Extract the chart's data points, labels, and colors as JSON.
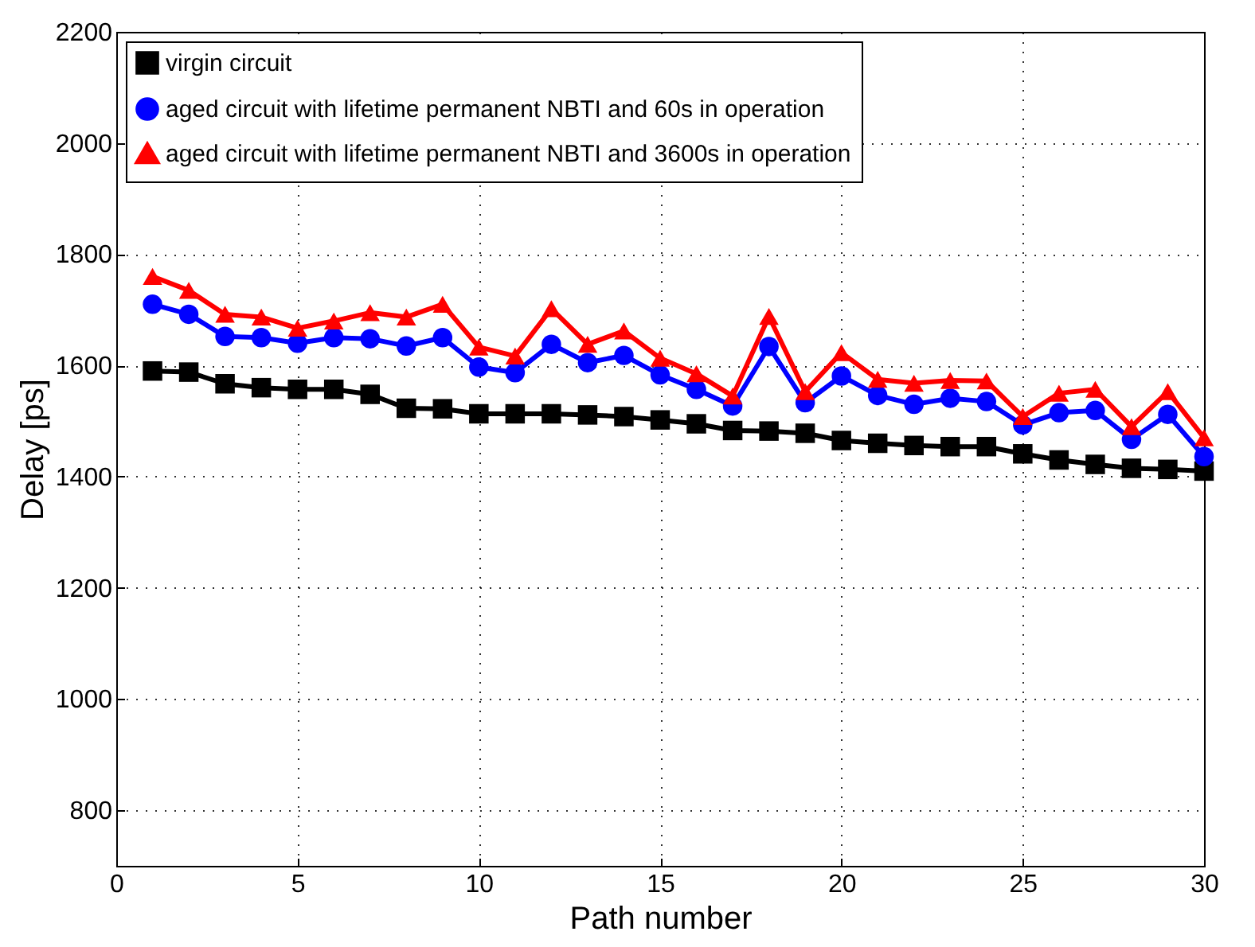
{
  "chart_data": {
    "type": "line",
    "xlabel": "Path number",
    "ylabel": "Delay [ps]",
    "x": [
      1,
      2,
      3,
      4,
      5,
      6,
      7,
      8,
      9,
      10,
      11,
      12,
      13,
      14,
      15,
      16,
      17,
      18,
      19,
      20,
      21,
      22,
      23,
      24,
      25,
      26,
      27,
      28,
      29,
      30
    ],
    "xlim": [
      0,
      30
    ],
    "xticks": [
      0,
      5,
      10,
      15,
      20,
      25,
      30
    ],
    "ylim": [
      700,
      2200
    ],
    "yticks": [
      800,
      1000,
      1200,
      1400,
      1600,
      1800,
      2000,
      2200
    ],
    "grid": true,
    "legend": "top left",
    "series": [
      {
        "name": "virgin circuit",
        "color": "#000000",
        "marker": "square",
        "values": [
          1590,
          1588,
          1567,
          1560,
          1557,
          1557,
          1548,
          1523,
          1522,
          1513,
          1513,
          1513,
          1511,
          1508,
          1502,
          1495,
          1483,
          1482,
          1478,
          1465,
          1460,
          1456,
          1454,
          1454,
          1441,
          1430,
          1422,
          1415,
          1413,
          1410
        ]
      },
      {
        "name": "aged circuit with lifetime permanent NBTI and 60s in operation",
        "color": "#0000ff",
        "marker": "circle",
        "values": [
          1710,
          1692,
          1652,
          1650,
          1640,
          1650,
          1648,
          1635,
          1650,
          1597,
          1587,
          1638,
          1605,
          1618,
          1583,
          1557,
          1527,
          1634,
          1533,
          1581,
          1546,
          1530,
          1541,
          1535,
          1493,
          1515,
          1519,
          1467,
          1512,
          1436
        ]
      },
      {
        "name": "aged circuit with lifetime permanent NBTI and 3600s in operation",
        "color": "#ff0000",
        "marker": "triangle",
        "values": [
          1760,
          1735,
          1692,
          1687,
          1667,
          1680,
          1695,
          1687,
          1710,
          1633,
          1617,
          1702,
          1638,
          1662,
          1613,
          1585,
          1545,
          1688,
          1553,
          1623,
          1575,
          1568,
          1573,
          1572,
          1508,
          1550,
          1557,
          1490,
          1553,
          1470
        ]
      }
    ]
  }
}
